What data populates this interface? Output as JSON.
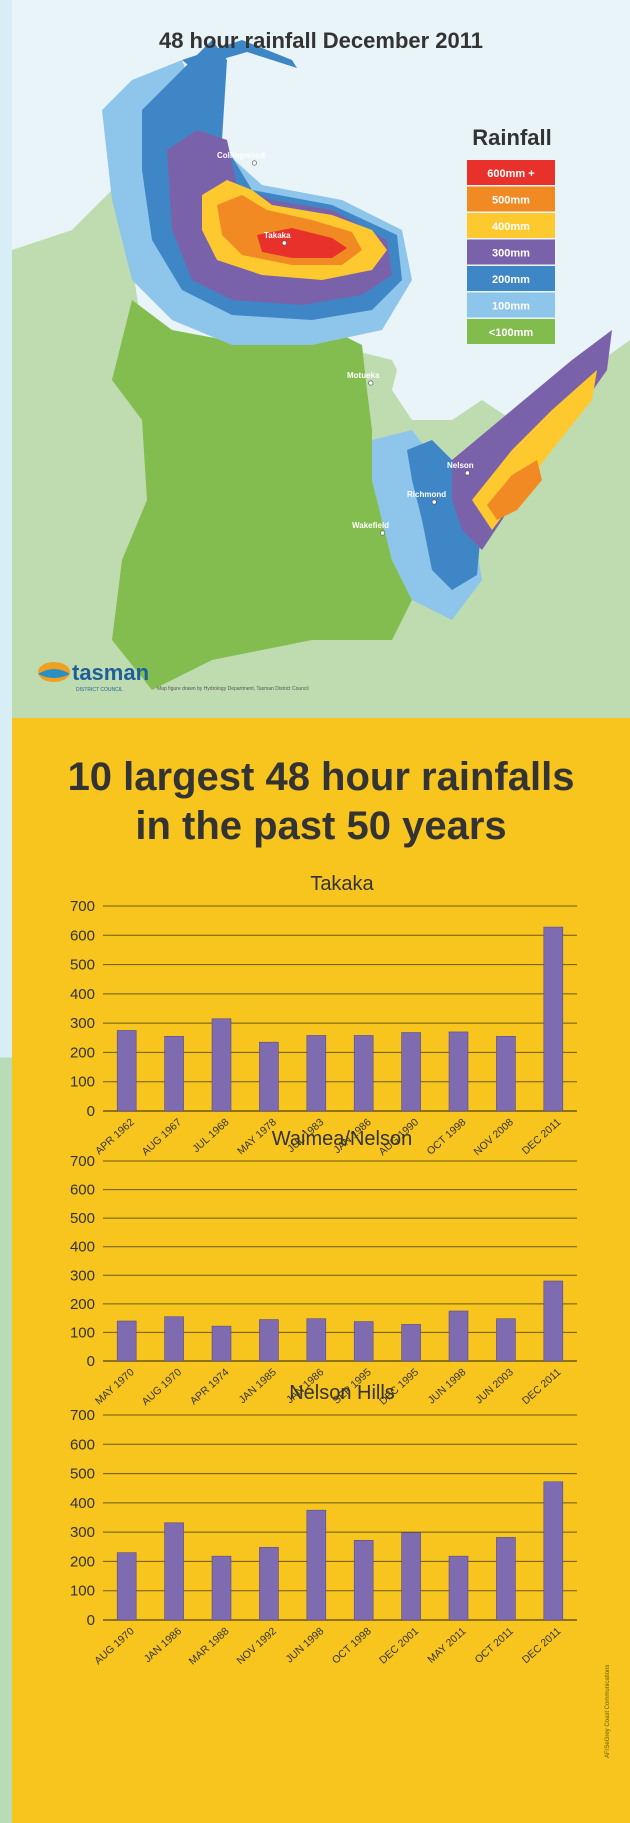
{
  "map": {
    "title": "48 hour rainfall December 2011",
    "legend_title": "Rainfall",
    "legend": [
      {
        "label": "600mm +",
        "color": "#e8312a"
      },
      {
        "label": "500mm",
        "color": "#f28a24"
      },
      {
        "label": "400mm",
        "color": "#fdc92f"
      },
      {
        "label": "300mm",
        "color": "#7a62aa"
      },
      {
        "label": "200mm",
        "color": "#3f86c6"
      },
      {
        "label": "100mm",
        "color": "#8ec5ea"
      },
      {
        "label": "<100mm",
        "color": "#82bc4d"
      }
    ],
    "places": [
      "Collingwood",
      "Takaka",
      "Motueka",
      "Nelson",
      "Richmond",
      "Wakefield"
    ],
    "logo_text": "tasman",
    "logo_subtext": "DISTRICT COUNCIL",
    "credit": "Map figure drawn by Hydrology Department, Tasman District Council"
  },
  "charts_title_line1": "10 largest 48 hour rainfalls",
  "charts_title_line2": "in the past 50 years",
  "side_credit": "AF/SeGrey Coast Communications",
  "colors": {
    "bar": "#7f6cb0",
    "grid": "#6a5a10",
    "background": "#f7c51e"
  },
  "chart_data": [
    {
      "type": "bar",
      "title": "Takaka",
      "categories": [
        "APR 1962",
        "AUG 1967",
        "JUL 1968",
        "MAY 1978",
        "JUL 1983",
        "JAN 1986",
        "AUG 1990",
        "OCT 1998",
        "NOV 2008",
        "DEC 2011"
      ],
      "values": [
        275,
        255,
        315,
        235,
        258,
        258,
        268,
        270,
        255,
        628
      ],
      "ylim": [
        0,
        700
      ],
      "yticks": [
        "0",
        "100",
        "200",
        "300",
        "400",
        "500",
        "600",
        "700"
      ],
      "xlabel": "",
      "ylabel": "",
      "grid": true
    },
    {
      "type": "bar",
      "title": "Waimea/Nelson",
      "categories": [
        "MAY 1970",
        "AUG 1970",
        "APR 1974",
        "JAN 1985",
        "JAN 1986",
        "SEP 1995",
        "DEC 1995",
        "JUN 1998",
        "JUN 2003",
        "DEC 2011"
      ],
      "values": [
        140,
        155,
        122,
        145,
        148,
        138,
        128,
        175,
        148,
        280
      ],
      "ylim": [
        0,
        700
      ],
      "yticks": [
        "0",
        "100",
        "200",
        "300",
        "400",
        "500",
        "600",
        "700"
      ],
      "xlabel": "",
      "ylabel": "",
      "grid": true
    },
    {
      "type": "bar",
      "title": "Nelson Hills",
      "categories": [
        "AUG 1970",
        "JAN 1986",
        "MAR 1988",
        "NOV 1992",
        "JUN 1998",
        "OCT 1998",
        "DEC 2001",
        "MAY 2011",
        "OCT 2011",
        "DEC 2011"
      ],
      "values": [
        230,
        332,
        218,
        248,
        375,
        272,
        298,
        218,
        282,
        472
      ],
      "ylim": [
        0,
        700
      ],
      "yticks": [
        "0",
        "100",
        "200",
        "300",
        "400",
        "500",
        "600",
        "700"
      ],
      "xlabel": "",
      "ylabel": "",
      "grid": true
    }
  ]
}
